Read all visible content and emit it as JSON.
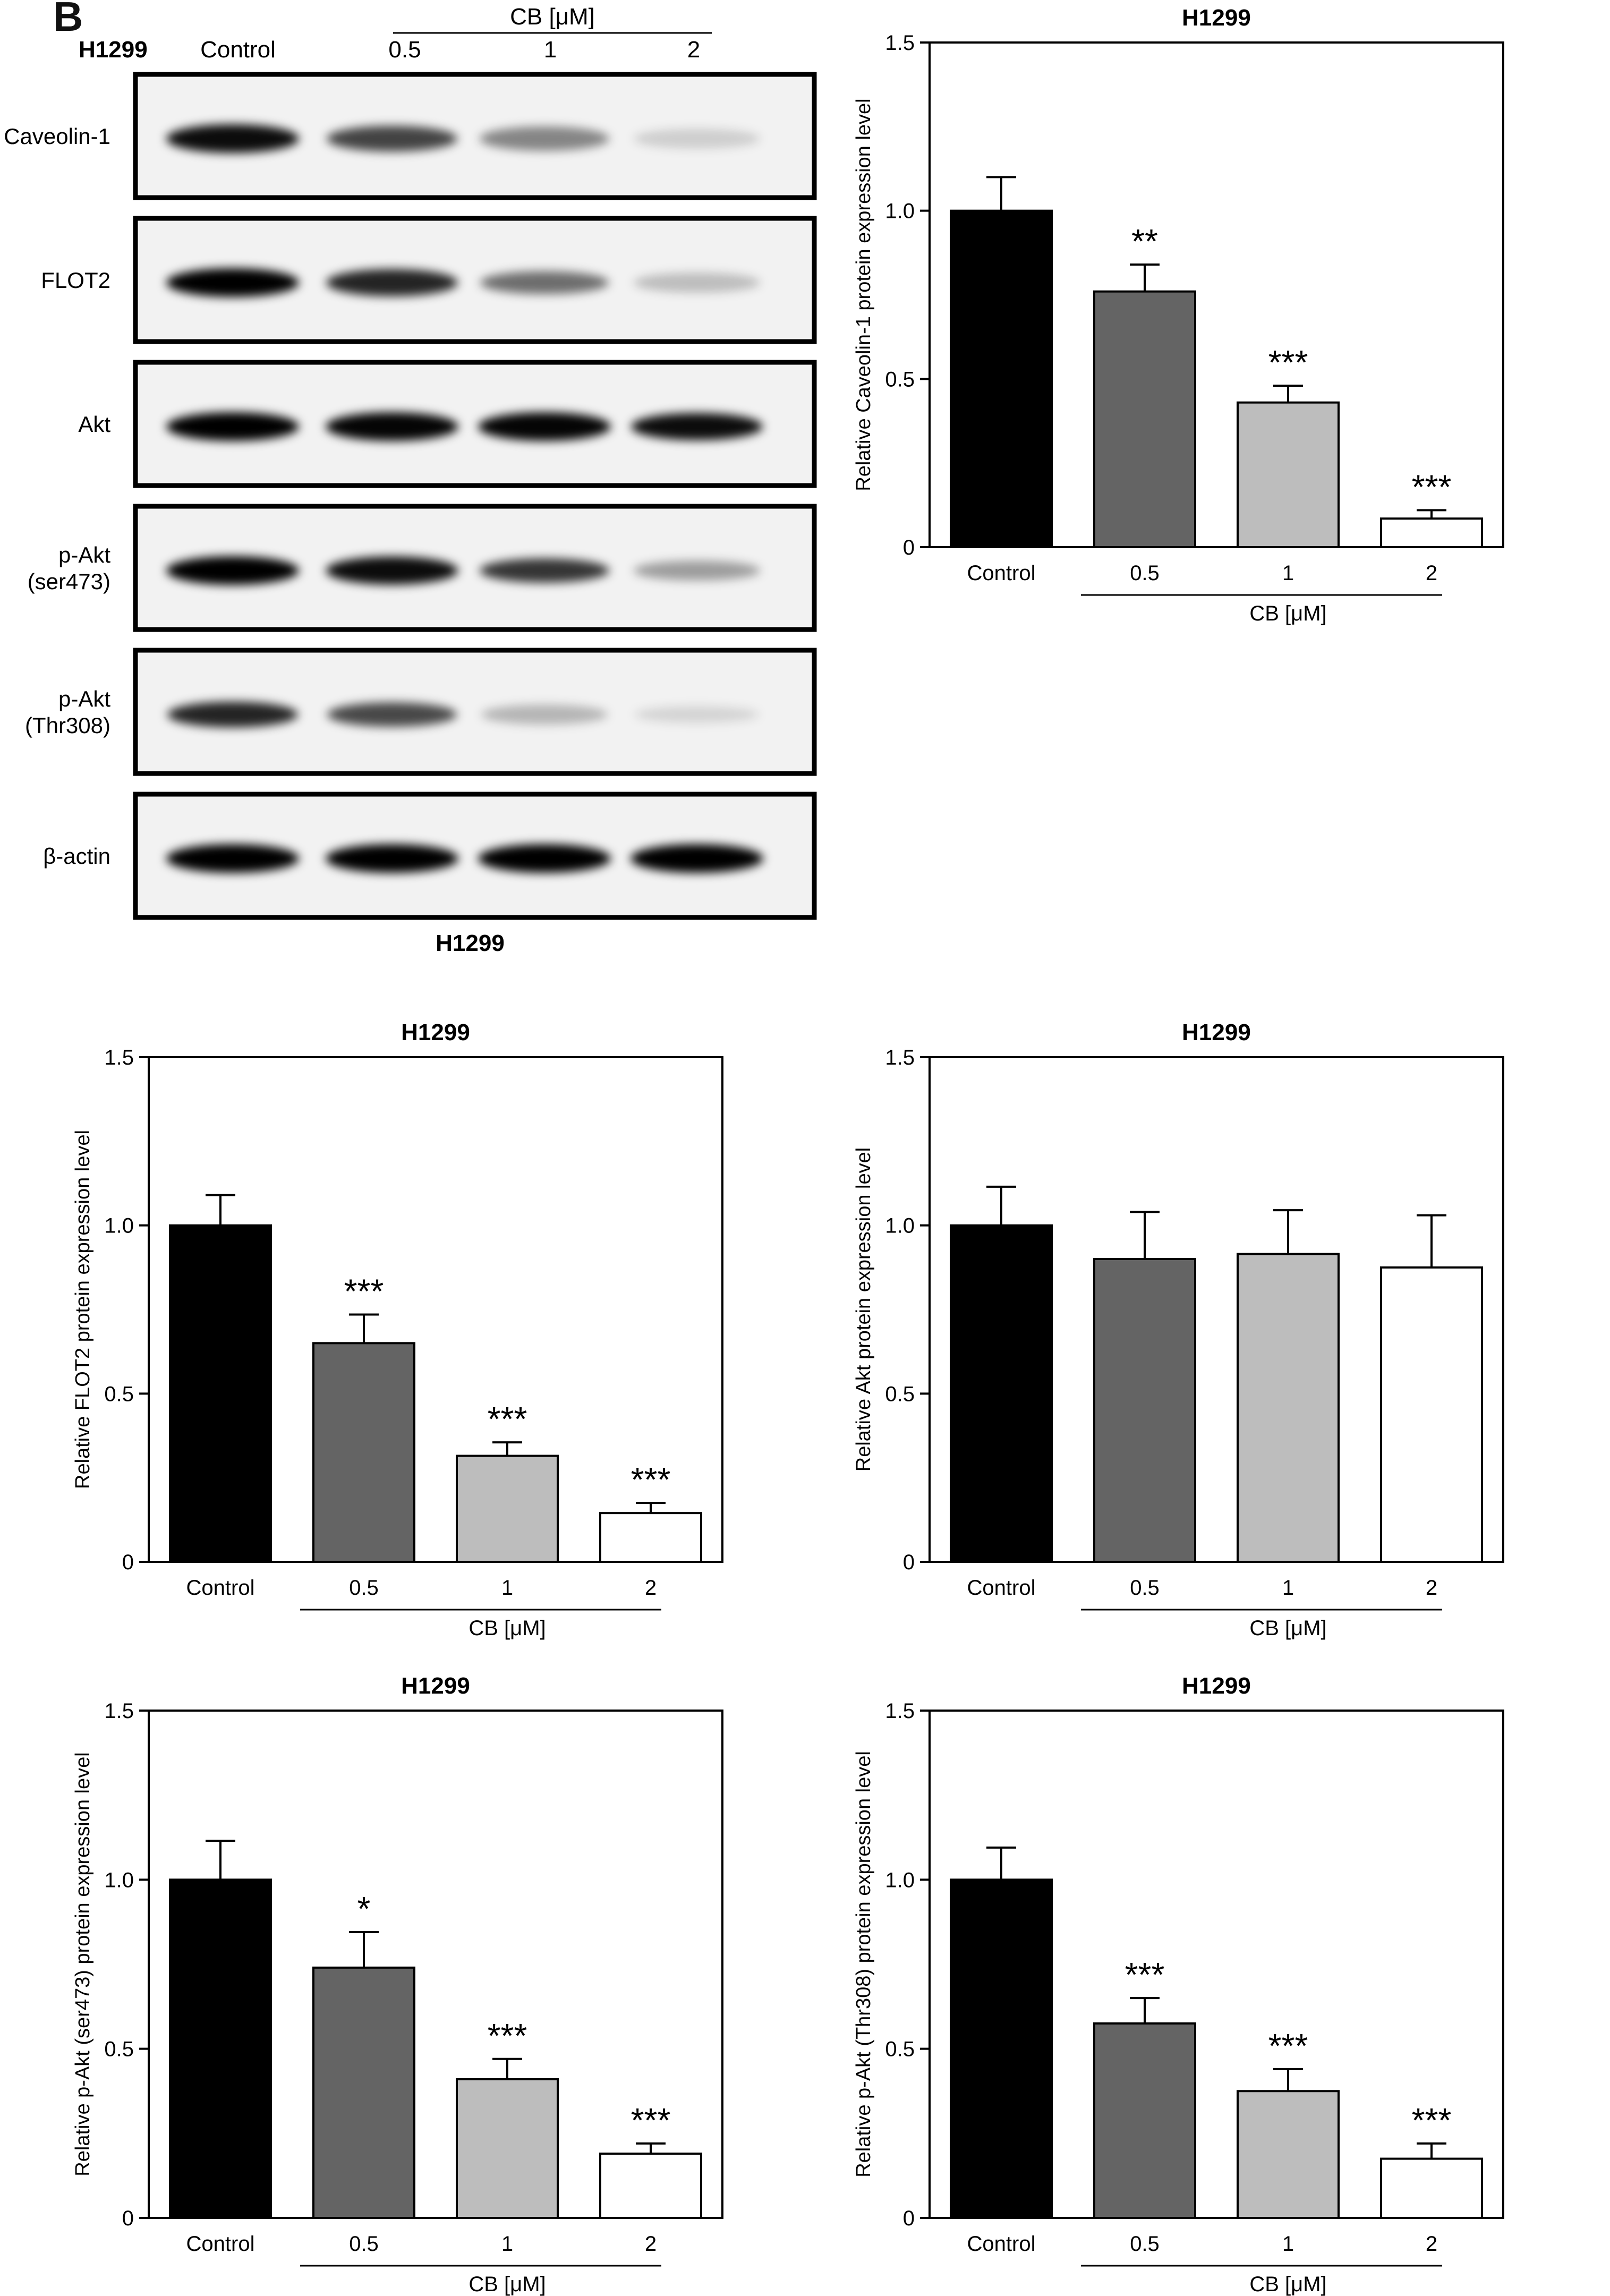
{
  "panel_letter": "B",
  "blot": {
    "cell_line": "H1299",
    "control_label": "Control",
    "treatment_header": "CB [μM]",
    "doses": [
      "0.5",
      "1",
      "2"
    ],
    "rows": [
      {
        "label": "Caveolin-1",
        "intensity": [
          0.95,
          0.72,
          0.45,
          0.15
        ],
        "thickness": [
          1.0,
          0.9,
          0.85,
          0.7
        ]
      },
      {
        "label": "FLOT2",
        "intensity": [
          1.0,
          0.85,
          0.55,
          0.22
        ],
        "thickness": [
          1.0,
          0.95,
          0.8,
          0.7
        ]
      },
      {
        "label": "Akt",
        "intensity": [
          1.0,
          0.98,
          0.98,
          0.95
        ],
        "thickness": [
          1.0,
          1.0,
          1.0,
          0.95
        ]
      },
      {
        "label": "p-Akt\n(ser473)",
        "intensity": [
          1.0,
          0.95,
          0.78,
          0.35
        ],
        "thickness": [
          1.0,
          0.98,
          0.85,
          0.7
        ]
      },
      {
        "label": "p-Akt\n(Thr308)",
        "intensity": [
          0.85,
          0.7,
          0.25,
          0.12
        ],
        "thickness": [
          0.9,
          0.85,
          0.7,
          0.6
        ]
      },
      {
        "label": "β-actin",
        "intensity": [
          1.0,
          1.0,
          1.0,
          1.0
        ],
        "thickness": [
          1.0,
          1.0,
          1.0,
          1.0
        ]
      }
    ],
    "caption": "H1299"
  },
  "colors": {
    "bar_fills": [
      "#000000",
      "#646464",
      "#bdbdbd",
      "#ffffff"
    ],
    "stroke": "#000000"
  },
  "chart_data": [
    {
      "type": "bar",
      "title": "H1299",
      "ylabel": "Relative Caveolin-1 protein expression level",
      "xlabel": "CB [μM]",
      "categories": [
        "Control",
        "0.5",
        "1",
        "2"
      ],
      "values": [
        1.0,
        0.76,
        0.43,
        0.085
      ],
      "errors": [
        0.1,
        0.08,
        0.05,
        0.025
      ],
      "significance": [
        "",
        "**",
        "***",
        "***"
      ],
      "ylim": [
        0,
        1.5
      ],
      "yticks": [
        "0",
        "0.5",
        "1.0",
        "1.5"
      ]
    },
    {
      "type": "bar",
      "title": "H1299",
      "ylabel": "Relative FLOT2 protein expression level",
      "xlabel": "CB [μM]",
      "categories": [
        "Control",
        "0.5",
        "1",
        "2"
      ],
      "values": [
        1.0,
        0.65,
        0.315,
        0.145
      ],
      "errors": [
        0.09,
        0.085,
        0.04,
        0.03
      ],
      "significance": [
        "",
        "***",
        "***",
        "***"
      ],
      "ylim": [
        0,
        1.5
      ],
      "yticks": [
        "0",
        "0.5",
        "1.0",
        "1.5"
      ]
    },
    {
      "type": "bar",
      "title": "H1299",
      "ylabel": "Relative Akt protein expression level",
      "xlabel": "CB [μM]",
      "categories": [
        "Control",
        "0.5",
        "1",
        "2"
      ],
      "values": [
        1.0,
        0.9,
        0.915,
        0.875
      ],
      "errors": [
        0.115,
        0.14,
        0.13,
        0.155
      ],
      "significance": [
        "",
        "",
        "",
        ""
      ],
      "ylim": [
        0,
        1.5
      ],
      "yticks": [
        "0",
        "0.5",
        "1.0",
        "1.5"
      ]
    },
    {
      "type": "bar",
      "title": "H1299",
      "ylabel": "Relative p-Akt (ser473) protein expression level",
      "xlabel": "CB [μM]",
      "categories": [
        "Control",
        "0.5",
        "1",
        "2"
      ],
      "values": [
        1.0,
        0.74,
        0.41,
        0.19
      ],
      "errors": [
        0.115,
        0.105,
        0.06,
        0.03
      ],
      "significance": [
        "",
        "*",
        "***",
        "***"
      ],
      "ylim": [
        0,
        1.5
      ],
      "yticks": [
        "0",
        "0.5",
        "1.0",
        "1.5"
      ]
    },
    {
      "type": "bar",
      "title": "H1299",
      "ylabel": "Relative p-Akt (Thr308) protein expression level",
      "xlabel": "CB [μM]",
      "categories": [
        "Control",
        "0.5",
        "1",
        "2"
      ],
      "values": [
        1.0,
        0.575,
        0.375,
        0.175
      ],
      "errors": [
        0.095,
        0.075,
        0.065,
        0.045
      ],
      "significance": [
        "",
        "***",
        "***",
        "***"
      ],
      "ylim": [
        0,
        1.5
      ],
      "yticks": [
        "0",
        "0.5",
        "1.0",
        "1.5"
      ]
    }
  ]
}
